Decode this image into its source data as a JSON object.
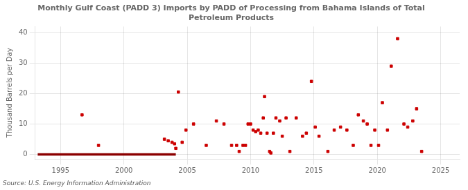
{
  "chart_data": {
    "type": "scatter",
    "title": "Monthly Gulf Coast (PADD 3) Imports by PADD of Processing from Bahama Islands of Total\nPetroleum Products",
    "ylabel": "Thousand Barrels per Day",
    "annotation": "Source: U.S. Energy Information Administration",
    "xlim": [
      1993.0,
      2026.5
    ],
    "xticks": [
      1995,
      2000,
      2005,
      2010,
      2015,
      2020,
      2025
    ],
    "ylim": [
      -1.5,
      42
    ],
    "yticks": [
      0,
      10,
      20,
      30,
      40
    ],
    "grid": true,
    "series": [
      {
        "type": "line",
        "color": "#8b0000",
        "line_style": "solid",
        "x": [
          1993.2,
          2004.1
        ],
        "values": [
          0,
          0
        ]
      },
      {
        "type": "scatter",
        "color": "#cc0000",
        "marker": "square",
        "x": [
          1996.7,
          1998.0,
          2003.2,
          2003.5,
          2003.8,
          2004.0,
          2004.1,
          2004.3,
          2004.6,
          2004.9,
          2005.5,
          2006.5,
          2007.3,
          2007.9,
          2008.5,
          2008.9,
          2009.1,
          2009.4,
          2009.6,
          2009.8,
          2010.0,
          2010.2,
          2010.4,
          2010.6,
          2010.8,
          2011.0,
          2011.1,
          2011.3,
          2011.5,
          2011.6,
          2011.8,
          2012.0,
          2012.3,
          2012.5,
          2012.8,
          2013.1,
          2013.6,
          2014.1,
          2014.4,
          2014.8,
          2015.1,
          2015.4,
          2016.1,
          2016.6,
          2017.1,
          2017.6,
          2018.1,
          2018.5,
          2018.9,
          2019.2,
          2019.5,
          2019.8,
          2020.1,
          2020.4,
          2020.8,
          2021.1,
          2021.6,
          2022.1,
          2022.4,
          2022.8,
          2023.1,
          2023.5
        ],
        "values": [
          13,
          3,
          5,
          4.5,
          4,
          3.5,
          2,
          20.5,
          4,
          8,
          10,
          3,
          11,
          10,
          3,
          3,
          1,
          3,
          3,
          10,
          10,
          8,
          7.5,
          8,
          7,
          12,
          19,
          7,
          1,
          0.5,
          7,
          12,
          11,
          6,
          12,
          1,
          12,
          6,
          7,
          24,
          9,
          6,
          1,
          8,
          9,
          8,
          3,
          13,
          11,
          10,
          3,
          8,
          3,
          17,
          8,
          29,
          38,
          10,
          9,
          11,
          15,
          1
        ]
      }
    ]
  }
}
